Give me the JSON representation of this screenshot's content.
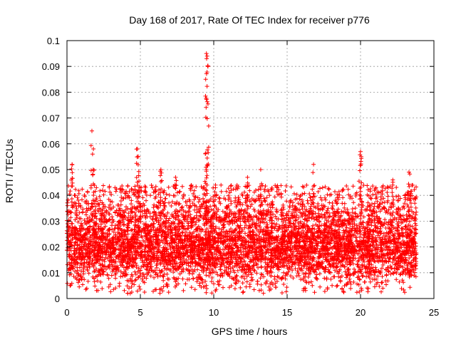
{
  "chart_data": {
    "type": "scatter",
    "title": "Day 168 of 2017, Rate Of TEC Index for receiver p776",
    "xlabel": "GPS time / hours",
    "ylabel": "ROTI / TECUs",
    "xlim": [
      0,
      25
    ],
    "ylim": [
      0,
      0.1
    ],
    "x_ticks": [
      0,
      5,
      10,
      15,
      20,
      25
    ],
    "y_ticks": [
      0,
      0.01,
      0.02,
      0.03,
      0.04,
      0.05,
      0.06,
      0.07,
      0.08,
      0.09,
      0.1
    ],
    "x_tick_labels": [
      "0",
      "5",
      "10",
      "15",
      "20",
      "25"
    ],
    "y_tick_labels": [
      "0",
      "0.01",
      "0.02",
      "0.03",
      "0.04",
      "0.05",
      "0.06",
      "0.07",
      "0.08",
      "0.09",
      "0.1"
    ],
    "grid": true,
    "legend": "none",
    "marker": "+",
    "color": "#ff0000",
    "series": [
      {
        "x_range": [
          0,
          23.8
        ],
        "core_y_range": [
          0.01,
          0.03
        ],
        "peaks": [
          {
            "x": 0.35,
            "y": 0.052
          },
          {
            "x": 1.7,
            "y": 0.065
          },
          {
            "x": 1.8,
            "y": 0.058
          },
          {
            "x": 4.8,
            "y": 0.058
          },
          {
            "x": 4.85,
            "y": 0.055
          },
          {
            "x": 9.5,
            "y": 0.095
          },
          {
            "x": 9.55,
            "y": 0.094
          },
          {
            "x": 9.6,
            "y": 0.09
          },
          {
            "x": 9.45,
            "y": 0.085
          },
          {
            "x": 9.5,
            "y": 0.05
          },
          {
            "x": 13.2,
            "y": 0.05
          },
          {
            "x": 16.8,
            "y": 0.052
          },
          {
            "x": 20.0,
            "y": 0.057
          },
          {
            "x": 20.05,
            "y": 0.055
          },
          {
            "x": 23.3,
            "y": 0.049
          },
          {
            "x": 6.4,
            "y": 0.05
          },
          {
            "x": 7.4,
            "y": 0.047
          },
          {
            "x": 12.3,
            "y": 0.047
          },
          {
            "x": 22.2,
            "y": 0.046
          }
        ]
      }
    ]
  }
}
